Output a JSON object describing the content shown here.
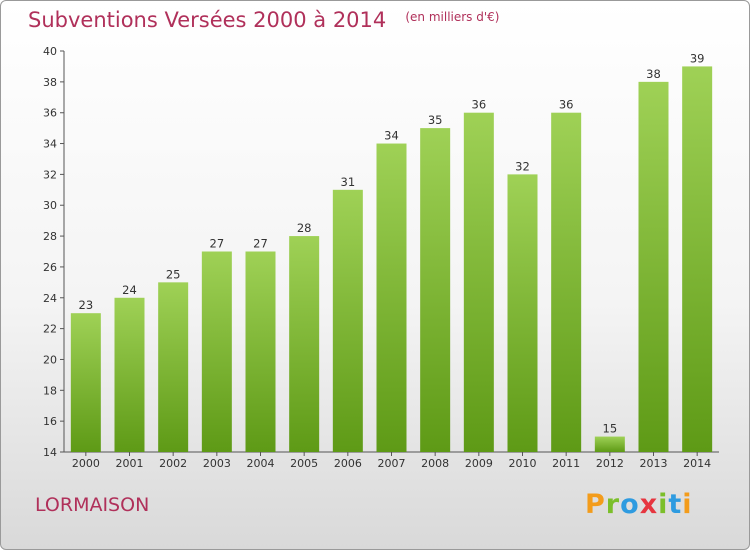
{
  "header": {
    "title": "Subventions Versées 2000 à 2014",
    "subtitle": "(en milliers d'€)"
  },
  "commune": "LORMAISON",
  "logo": {
    "text": "Proxiti",
    "letters": [
      {
        "char": "P",
        "color": "#f39c1b"
      },
      {
        "char": "r",
        "color": "#7bbf2a"
      },
      {
        "char": "o",
        "color": "#2e9be0"
      },
      {
        "char": "x",
        "color": "#e6353f"
      },
      {
        "char": "i",
        "color": "#7bbf2a"
      },
      {
        "char": "t",
        "color": "#2e9be0"
      },
      {
        "char": "i",
        "color": "#f39c1b"
      }
    ]
  },
  "colors": {
    "bar_light": "#9fd156",
    "bar_dark": "#5e9a16",
    "axis": "#555555",
    "title": "#b0305a"
  },
  "chart_data": {
    "type": "bar",
    "title": "Subventions Versées 2000 à 2014",
    "subtitle": "(en milliers d'€)",
    "categories": [
      "2000",
      "2001",
      "2002",
      "2003",
      "2004",
      "2005",
      "2006",
      "2007",
      "2008",
      "2009",
      "2010",
      "2011",
      "2012",
      "2013",
      "2014"
    ],
    "values": [
      23,
      24,
      25,
      27,
      27,
      28,
      31,
      34,
      35,
      36,
      32,
      36,
      15,
      38,
      39
    ],
    "ylim": [
      14,
      40
    ],
    "yticks": [
      14,
      16,
      18,
      20,
      22,
      24,
      26,
      28,
      30,
      32,
      34,
      36,
      38,
      40
    ],
    "xlabel": "",
    "ylabel": "",
    "grid": false,
    "data_labels": true
  }
}
